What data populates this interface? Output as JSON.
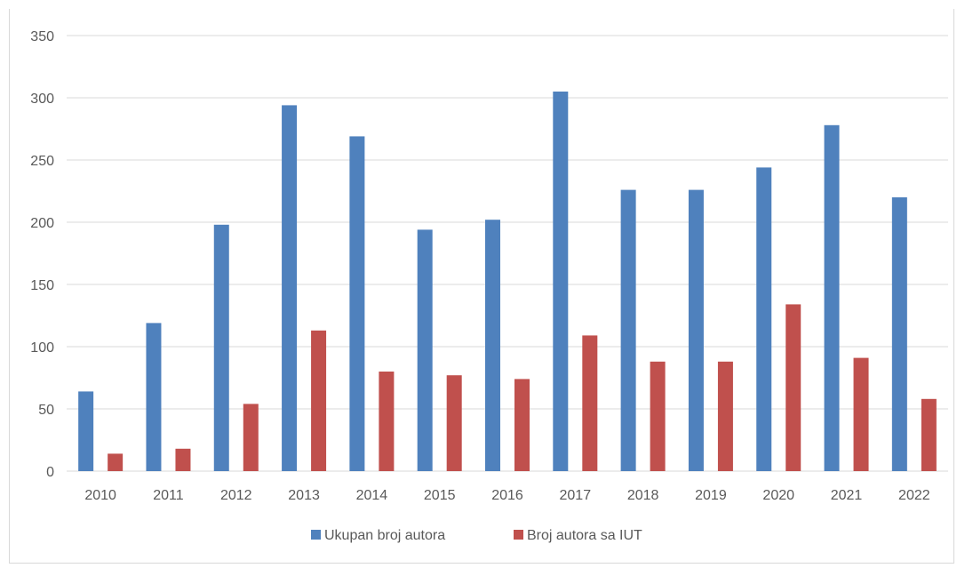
{
  "colors": {
    "series_1": "#4f81bd",
    "series_2": "#c0504d",
    "grid": "#d9d9d9",
    "axis_text": "#595959"
  },
  "chart_data": {
    "type": "bar",
    "title": "",
    "xlabel": "",
    "ylabel": "",
    "categories": [
      "2010",
      "2011",
      "2012",
      "2013",
      "2014",
      "2015",
      "2016",
      "2017",
      "2018",
      "2019",
      "2020",
      "2021",
      "2022"
    ],
    "series": [
      {
        "name": "Ukupan broj autora",
        "color": "#4f81bd",
        "values": [
          64,
          119,
          198,
          294,
          269,
          194,
          202,
          305,
          226,
          226,
          244,
          278,
          220
        ]
      },
      {
        "name": "Broj autora sa IUT",
        "color": "#c0504d",
        "values": [
          14,
          18,
          54,
          113,
          80,
          77,
          74,
          109,
          88,
          88,
          134,
          91,
          58
        ]
      }
    ],
    "ylim": [
      0,
      350
    ],
    "yticks": [
      0,
      50,
      100,
      150,
      200,
      250,
      300,
      350
    ],
    "grid": true,
    "legend_position": "bottom"
  }
}
